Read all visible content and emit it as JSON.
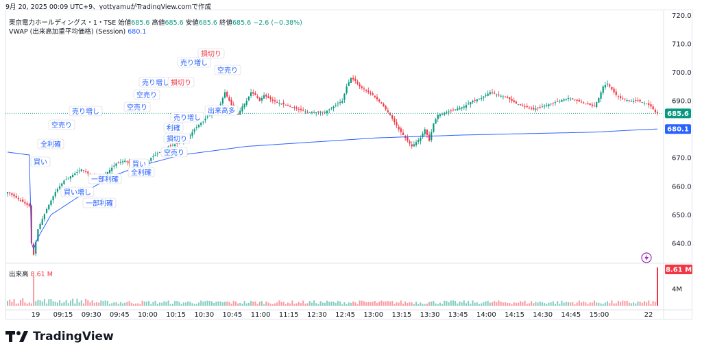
{
  "caption": "9月 20, 2025 00:09 UTC+9、yottyamuがTradingView.comで作成",
  "legend": {
    "symbol": "東京電力ホールディングス・1・TSE",
    "open_label": "始値",
    "open": "685.6",
    "high_label": "高値",
    "high": "685.6",
    "low_label": "安値",
    "low": "685.6",
    "close_label": "終値",
    "close": "685.6",
    "change": "−2.6 (−0.38%)",
    "vwap_label": "VWAP (出来高加重平均価格) (Session)",
    "vwap_value": "680.1",
    "volume_label": "出来高",
    "volume_value": "8.61 M"
  },
  "logo_text": "TradingView",
  "colors": {
    "up": "#089981",
    "down": "#f23645",
    "vwap": "#2962ff",
    "annotation_blue": "#2962ff",
    "annotation_red": "#f23645"
  },
  "chart_data": {
    "type": "candlestick",
    "ylim": [
      633,
      722
    ],
    "y_ticks": [
      "640.0",
      "650.0",
      "660.0",
      "670.0",
      "680.0",
      "690.0",
      "700.0",
      "710.0",
      "720.0"
    ],
    "x_ticks": [
      "19",
      "09:15",
      "09:30",
      "09:45",
      "10:00",
      "10:15",
      "10:30",
      "10:45",
      "11:00",
      "11:15",
      "12:30",
      "12:45",
      "13:00",
      "13:15",
      "13:30",
      "13:45",
      "14:00",
      "14:15",
      "14:30",
      "14:45",
      "15:00",
      "22"
    ],
    "price_tags": [
      {
        "value": 685.6,
        "label": "685.6",
        "color": "#089981"
      },
      {
        "value": 680.1,
        "label": "680.1",
        "color": "#2962ff"
      }
    ],
    "volume_tags": [
      {
        "label": "8.61 M",
        "color": "#f23645"
      }
    ],
    "volume_axis_ticks": [
      "4M"
    ],
    "close_path": [
      [
        0,
        658
      ],
      [
        4,
        656
      ],
      [
        8,
        654
      ],
      [
        10,
        653
      ],
      [
        11,
        640
      ],
      [
        12,
        636
      ],
      [
        14,
        645
      ],
      [
        18,
        652
      ],
      [
        22,
        658
      ],
      [
        26,
        662
      ],
      [
        30,
        664
      ],
      [
        34,
        666
      ],
      [
        38,
        664
      ],
      [
        42,
        662
      ],
      [
        46,
        665
      ],
      [
        50,
        668
      ],
      [
        54,
        669
      ],
      [
        58,
        667
      ],
      [
        62,
        666
      ],
      [
        66,
        670
      ],
      [
        70,
        672
      ],
      [
        74,
        674
      ],
      [
        78,
        675
      ],
      [
        82,
        676
      ],
      [
        86,
        680
      ],
      [
        90,
        683
      ],
      [
        94,
        686
      ],
      [
        98,
        689
      ],
      [
        100,
        693
      ],
      [
        102,
        690
      ],
      [
        104,
        687
      ],
      [
        106,
        685
      ],
      [
        108,
        688
      ],
      [
        110,
        690
      ],
      [
        112,
        693
      ],
      [
        114,
        692
      ],
      [
        116,
        690
      ],
      [
        118,
        692
      ],
      [
        122,
        690
      ],
      [
        126,
        689
      ],
      [
        130,
        688
      ],
      [
        134,
        687
      ],
      [
        138,
        686
      ],
      [
        142,
        686
      ],
      [
        146,
        686
      ],
      [
        150,
        688
      ],
      [
        154,
        690
      ],
      [
        156,
        695
      ],
      [
        158,
        698
      ],
      [
        160,
        697
      ],
      [
        162,
        695
      ],
      [
        164,
        694
      ],
      [
        168,
        692
      ],
      [
        172,
        689
      ],
      [
        176,
        685
      ],
      [
        180,
        680
      ],
      [
        184,
        676
      ],
      [
        186,
        674
      ],
      [
        190,
        677
      ],
      [
        192,
        680
      ],
      [
        194,
        676
      ],
      [
        196,
        682
      ],
      [
        198,
        685
      ],
      [
        202,
        686
      ],
      [
        206,
        687
      ],
      [
        210,
        688
      ],
      [
        214,
        690
      ],
      [
        218,
        691
      ],
      [
        222,
        693
      ],
      [
        226,
        692
      ],
      [
        230,
        691
      ],
      [
        234,
        689
      ],
      [
        238,
        688
      ],
      [
        242,
        687
      ],
      [
        246,
        688
      ],
      [
        250,
        689
      ],
      [
        254,
        690
      ],
      [
        258,
        691
      ],
      [
        262,
        690
      ],
      [
        266,
        689
      ],
      [
        270,
        688
      ],
      [
        272,
        691
      ],
      [
        274,
        695
      ],
      [
        276,
        696
      ],
      [
        278,
        694
      ],
      [
        280,
        692
      ],
      [
        282,
        691
      ],
      [
        286,
        690
      ],
      [
        290,
        690
      ],
      [
        294,
        689
      ],
      [
        296,
        688
      ],
      [
        298,
        686
      ],
      [
        299,
        685.6
      ]
    ],
    "vwap_path": [
      [
        0,
        672
      ],
      [
        10,
        671
      ],
      [
        11,
        640
      ],
      [
        12,
        638
      ],
      [
        14,
        642
      ],
      [
        20,
        650
      ],
      [
        30,
        655
      ],
      [
        40,
        660
      ],
      [
        50,
        664
      ],
      [
        60,
        667
      ],
      [
        70,
        669
      ],
      [
        80,
        671
      ],
      [
        90,
        672
      ],
      [
        100,
        673
      ],
      [
        110,
        674
      ],
      [
        130,
        675
      ],
      [
        150,
        676
      ],
      [
        170,
        677
      ],
      [
        190,
        677.5
      ],
      [
        210,
        678
      ],
      [
        240,
        678.5
      ],
      [
        270,
        679
      ],
      [
        290,
        679.8
      ],
      [
        299,
        680.1
      ]
    ],
    "volume_spikes": [
      {
        "bar": 12,
        "relative": 0.55
      },
      {
        "bar": 299,
        "relative": 1.0
      }
    ],
    "annotations": [
      {
        "label": "買い",
        "color": "blue"
      },
      {
        "label": "全利確",
        "color": "blue"
      },
      {
        "label": "空売り",
        "color": "blue"
      },
      {
        "label": "売り増し",
        "color": "blue"
      },
      {
        "label": "買い増し",
        "color": "blue"
      },
      {
        "label": "一部利確",
        "color": "blue"
      },
      {
        "label": "一部利確",
        "color": "blue"
      },
      {
        "label": "買い",
        "color": "blue"
      },
      {
        "label": "全利確",
        "color": "blue"
      },
      {
        "label": "空売り",
        "color": "blue"
      },
      {
        "label": "売り増し",
        "color": "blue"
      },
      {
        "label": "空売り",
        "color": "blue"
      },
      {
        "label": "利確",
        "color": "blue"
      },
      {
        "label": "損切り",
        "color": "blue"
      },
      {
        "label": "空売り",
        "color": "blue"
      },
      {
        "label": "損切り",
        "color": "red"
      },
      {
        "label": "売り増し",
        "color": "blue"
      },
      {
        "label": "売り増し",
        "color": "blue"
      },
      {
        "label": "損切り",
        "color": "red"
      },
      {
        "label": "空売り",
        "color": "blue"
      },
      {
        "label": "出来高多",
        "color": "blue"
      }
    ]
  }
}
